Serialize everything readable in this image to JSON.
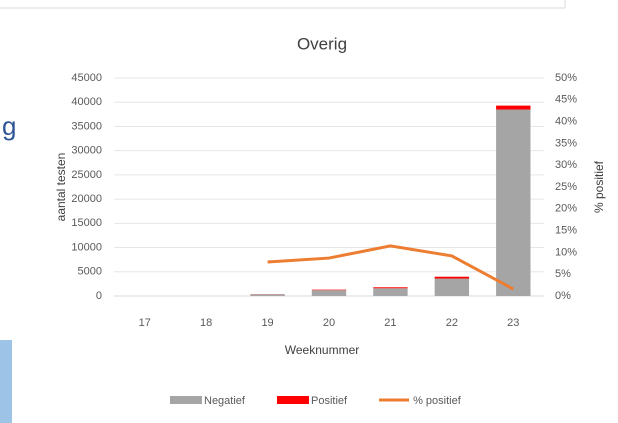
{
  "side_text": "g",
  "chart_data": {
    "type": "bar",
    "stacked": true,
    "title": "Overig",
    "x_label": "Weeknummer",
    "y_label": "aantal testen",
    "y2_label": "% positief",
    "categories": [
      "17",
      "18",
      "19",
      "20",
      "21",
      "22",
      "23"
    ],
    "series": [
      {
        "name": "Negatief",
        "type": "bar",
        "color": "#a5a5a5",
        "values": [
          0,
          0,
          350,
          1200,
          1600,
          3600,
          38500
        ]
      },
      {
        "name": "Positief",
        "type": "bar",
        "color": "#ff0000",
        "values": [
          0,
          0,
          30,
          110,
          200,
          380,
          800
        ]
      },
      {
        "name": "% positief",
        "type": "line",
        "axis": "y2",
        "color": "#ed7d31",
        "values": [
          null,
          null,
          7.8,
          8.7,
          11.5,
          9.2,
          1.6
        ]
      }
    ],
    "ylim": [
      0,
      45000
    ],
    "yticks": [
      0,
      5000,
      10000,
      15000,
      20000,
      25000,
      30000,
      35000,
      40000,
      45000
    ],
    "y2lim": [
      0,
      50
    ],
    "y2ticks": [
      {
        "value": 0,
        "label": "0%"
      },
      {
        "value": 5,
        "label": "5%"
      },
      {
        "value": 10,
        "label": "10%"
      },
      {
        "value": 15,
        "label": "15%"
      },
      {
        "value": 20,
        "label": "20%"
      },
      {
        "value": 25,
        "label": "25%"
      },
      {
        "value": 30,
        "label": "30%"
      },
      {
        "value": 35,
        "label": "35%"
      },
      {
        "value": 40,
        "label": "40%"
      },
      {
        "value": 45,
        "label": "45%"
      },
      {
        "value": 50,
        "label": "50%"
      }
    ],
    "grid": true,
    "legend": "bottom"
  }
}
